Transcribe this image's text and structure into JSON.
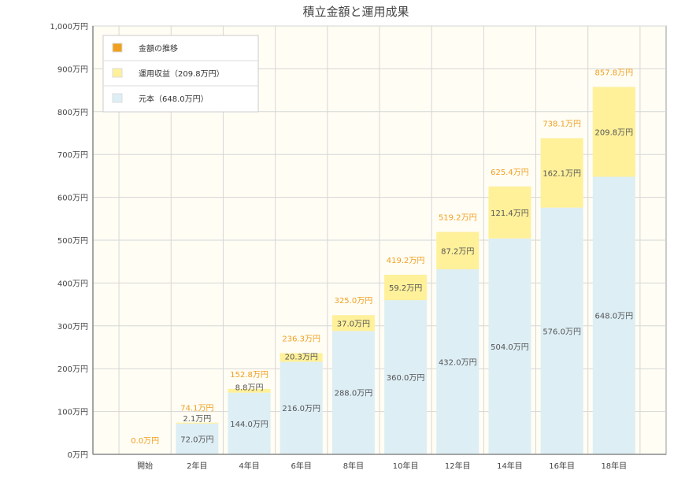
{
  "chart_data": {
    "type": "bar",
    "stacked": true,
    "title": "積立金額と運用成果",
    "categories": [
      "開始",
      "2年目",
      "4年目",
      "6年目",
      "8年目",
      "10年目",
      "12年目",
      "14年目",
      "16年目",
      "18年目"
    ],
    "y_ticks": [
      "0万円",
      "100万円",
      "200万円",
      "300万円",
      "400万円",
      "500万円",
      "600万円",
      "700万円",
      "800万円",
      "900万円",
      "1,000万円"
    ],
    "ylim": [
      0,
      1000
    ],
    "grid": true,
    "series": [
      {
        "name": "元本",
        "color": "#ddeef5",
        "values": [
          0,
          72.0,
          144.0,
          216.0,
          288.0,
          360.0,
          432.0,
          504.0,
          576.0,
          648.0
        ],
        "labels": [
          "",
          "72.0万円",
          "144.0万円",
          "216.0万円",
          "288.0万円",
          "360.0万円",
          "432.0万円",
          "504.0万円",
          "576.0万円",
          "648.0万円"
        ]
      },
      {
        "name": "運用収益",
        "color": "#fff09a",
        "values": [
          0,
          2.1,
          8.8,
          20.3,
          37.0,
          59.2,
          87.2,
          121.4,
          162.1,
          209.8
        ],
        "labels": [
          "",
          "2.1万円",
          "8.8万円",
          "20.3万円",
          "37.0万円",
          "59.2万円",
          "87.2万円",
          "121.4万円",
          "162.1万円",
          "209.8万円"
        ]
      }
    ],
    "totals": {
      "name": "金額の推移",
      "color": "#f0a020",
      "values": [
        0.0,
        74.1,
        152.8,
        236.3,
        325.0,
        419.2,
        519.2,
        625.4,
        738.1,
        857.8
      ],
      "labels": [
        "0.0万円",
        "74.1万円",
        "152.8万円",
        "236.3万円",
        "325.0万円",
        "419.2万円",
        "519.2万円",
        "625.4万円",
        "738.1万円",
        "857.8万円"
      ]
    },
    "legend": {
      "position": "top-left",
      "items": [
        {
          "label": "金額の推移",
          "color": "#f0a020"
        },
        {
          "label": "運用収益（209.8万円）",
          "color": "#fff09a"
        },
        {
          "label": "元本（648.0万円）",
          "color": "#ddeef5"
        }
      ]
    }
  }
}
